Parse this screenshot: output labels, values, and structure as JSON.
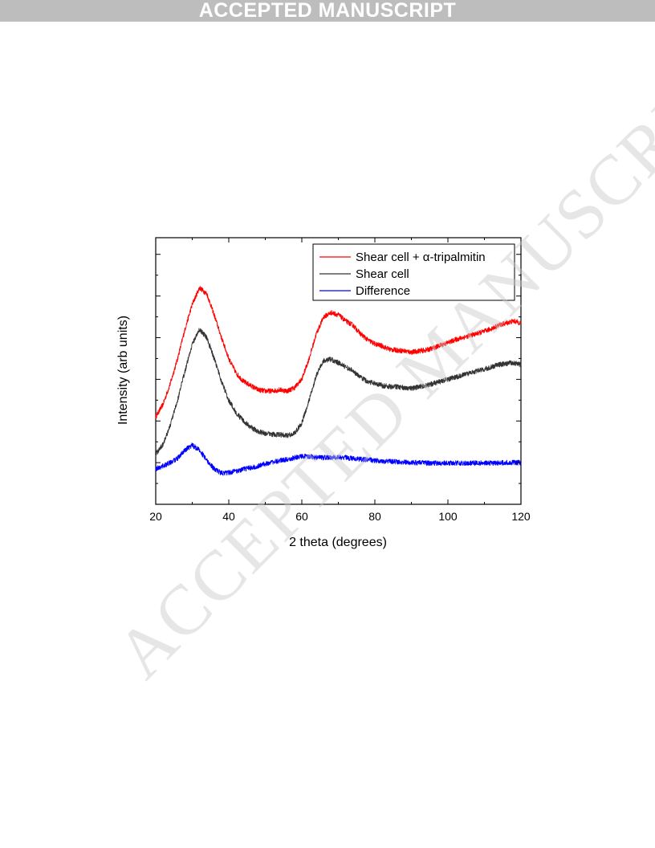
{
  "banner": {
    "text": "ACCEPTED MANUSCRIPT"
  },
  "watermark": {
    "text": "ACCEPTED MANUSCRIPT"
  },
  "chart_data": {
    "type": "line",
    "xlabel": "2 theta (degrees)",
    "ylabel": "Intensity (arb units)",
    "xlim": [
      20,
      120
    ],
    "ylim": [
      0,
      6.4
    ],
    "x_ticks": [
      20,
      40,
      60,
      80,
      100,
      120
    ],
    "y_tick_labels_shown": false,
    "grid": false,
    "legend_position": "top-right",
    "series": [
      {
        "name": "Shear cell + α-tripalmitin",
        "color": "#ff0000",
        "x": [
          20,
          22,
          24,
          26,
          28,
          30,
          32,
          34,
          36,
          38,
          40,
          42,
          44,
          46,
          48,
          50,
          52,
          54,
          56,
          58,
          60,
          62,
          64,
          66,
          68,
          70,
          72,
          74,
          76,
          78,
          80,
          82,
          84,
          86,
          88,
          90,
          92,
          94,
          96,
          98,
          100,
          102,
          104,
          106,
          108,
          110,
          112,
          114,
          116,
          118,
          120
        ],
        "values": [
          2.1,
          2.4,
          2.9,
          3.5,
          4.2,
          4.8,
          5.2,
          5.05,
          4.55,
          4.0,
          3.5,
          3.15,
          2.95,
          2.85,
          2.75,
          2.72,
          2.72,
          2.75,
          2.72,
          2.8,
          3.0,
          3.5,
          4.1,
          4.5,
          4.6,
          4.55,
          4.4,
          4.3,
          4.1,
          3.95,
          3.85,
          3.8,
          3.72,
          3.7,
          3.68,
          3.65,
          3.68,
          3.7,
          3.75,
          3.82,
          3.88,
          3.95,
          4.0,
          4.05,
          4.1,
          4.15,
          4.22,
          4.3,
          4.35,
          4.4,
          4.35
        ]
      },
      {
        "name": "Shear cell",
        "color": "#333333",
        "x": [
          20,
          22,
          24,
          26,
          28,
          30,
          32,
          34,
          36,
          38,
          40,
          42,
          44,
          46,
          48,
          50,
          52,
          54,
          56,
          58,
          60,
          62,
          64,
          66,
          68,
          70,
          72,
          74,
          76,
          78,
          80,
          82,
          84,
          86,
          88,
          90,
          92,
          94,
          96,
          98,
          100,
          102,
          104,
          106,
          108,
          110,
          112,
          114,
          116,
          118,
          120
        ],
        "values": [
          1.2,
          1.45,
          1.9,
          2.5,
          3.2,
          3.85,
          4.2,
          4.0,
          3.5,
          2.95,
          2.5,
          2.2,
          2.0,
          1.85,
          1.75,
          1.7,
          1.68,
          1.67,
          1.65,
          1.7,
          1.95,
          2.5,
          3.1,
          3.45,
          3.48,
          3.4,
          3.3,
          3.2,
          3.05,
          2.95,
          2.9,
          2.85,
          2.83,
          2.82,
          2.8,
          2.78,
          2.82,
          2.85,
          2.9,
          2.95,
          3.0,
          3.05,
          3.1,
          3.15,
          3.2,
          3.25,
          3.3,
          3.35,
          3.38,
          3.4,
          3.35
        ]
      },
      {
        "name": "Difference",
        "color": "#0000ff",
        "x": [
          20,
          22,
          24,
          26,
          28,
          30,
          32,
          34,
          36,
          38,
          40,
          42,
          44,
          46,
          48,
          50,
          52,
          54,
          56,
          58,
          60,
          62,
          64,
          66,
          68,
          70,
          72,
          74,
          76,
          78,
          80,
          82,
          84,
          86,
          88,
          90,
          92,
          94,
          96,
          98,
          100,
          102,
          104,
          106,
          108,
          110,
          112,
          114,
          116,
          118,
          120
        ],
        "values": [
          0.85,
          0.92,
          1.0,
          1.1,
          1.3,
          1.42,
          1.3,
          1.05,
          0.85,
          0.75,
          0.76,
          0.8,
          0.84,
          0.88,
          0.92,
          0.97,
          1.02,
          1.05,
          1.08,
          1.12,
          1.15,
          1.15,
          1.13,
          1.12,
          1.12,
          1.13,
          1.12,
          1.1,
          1.08,
          1.07,
          1.05,
          1.04,
          1.03,
          1.02,
          1.01,
          1.0,
          1.0,
          0.99,
          0.99,
          0.99,
          0.99,
          0.99,
          0.99,
          0.99,
          0.99,
          0.99,
          0.99,
          1.0,
          1.0,
          1.0,
          1.0
        ]
      }
    ]
  }
}
